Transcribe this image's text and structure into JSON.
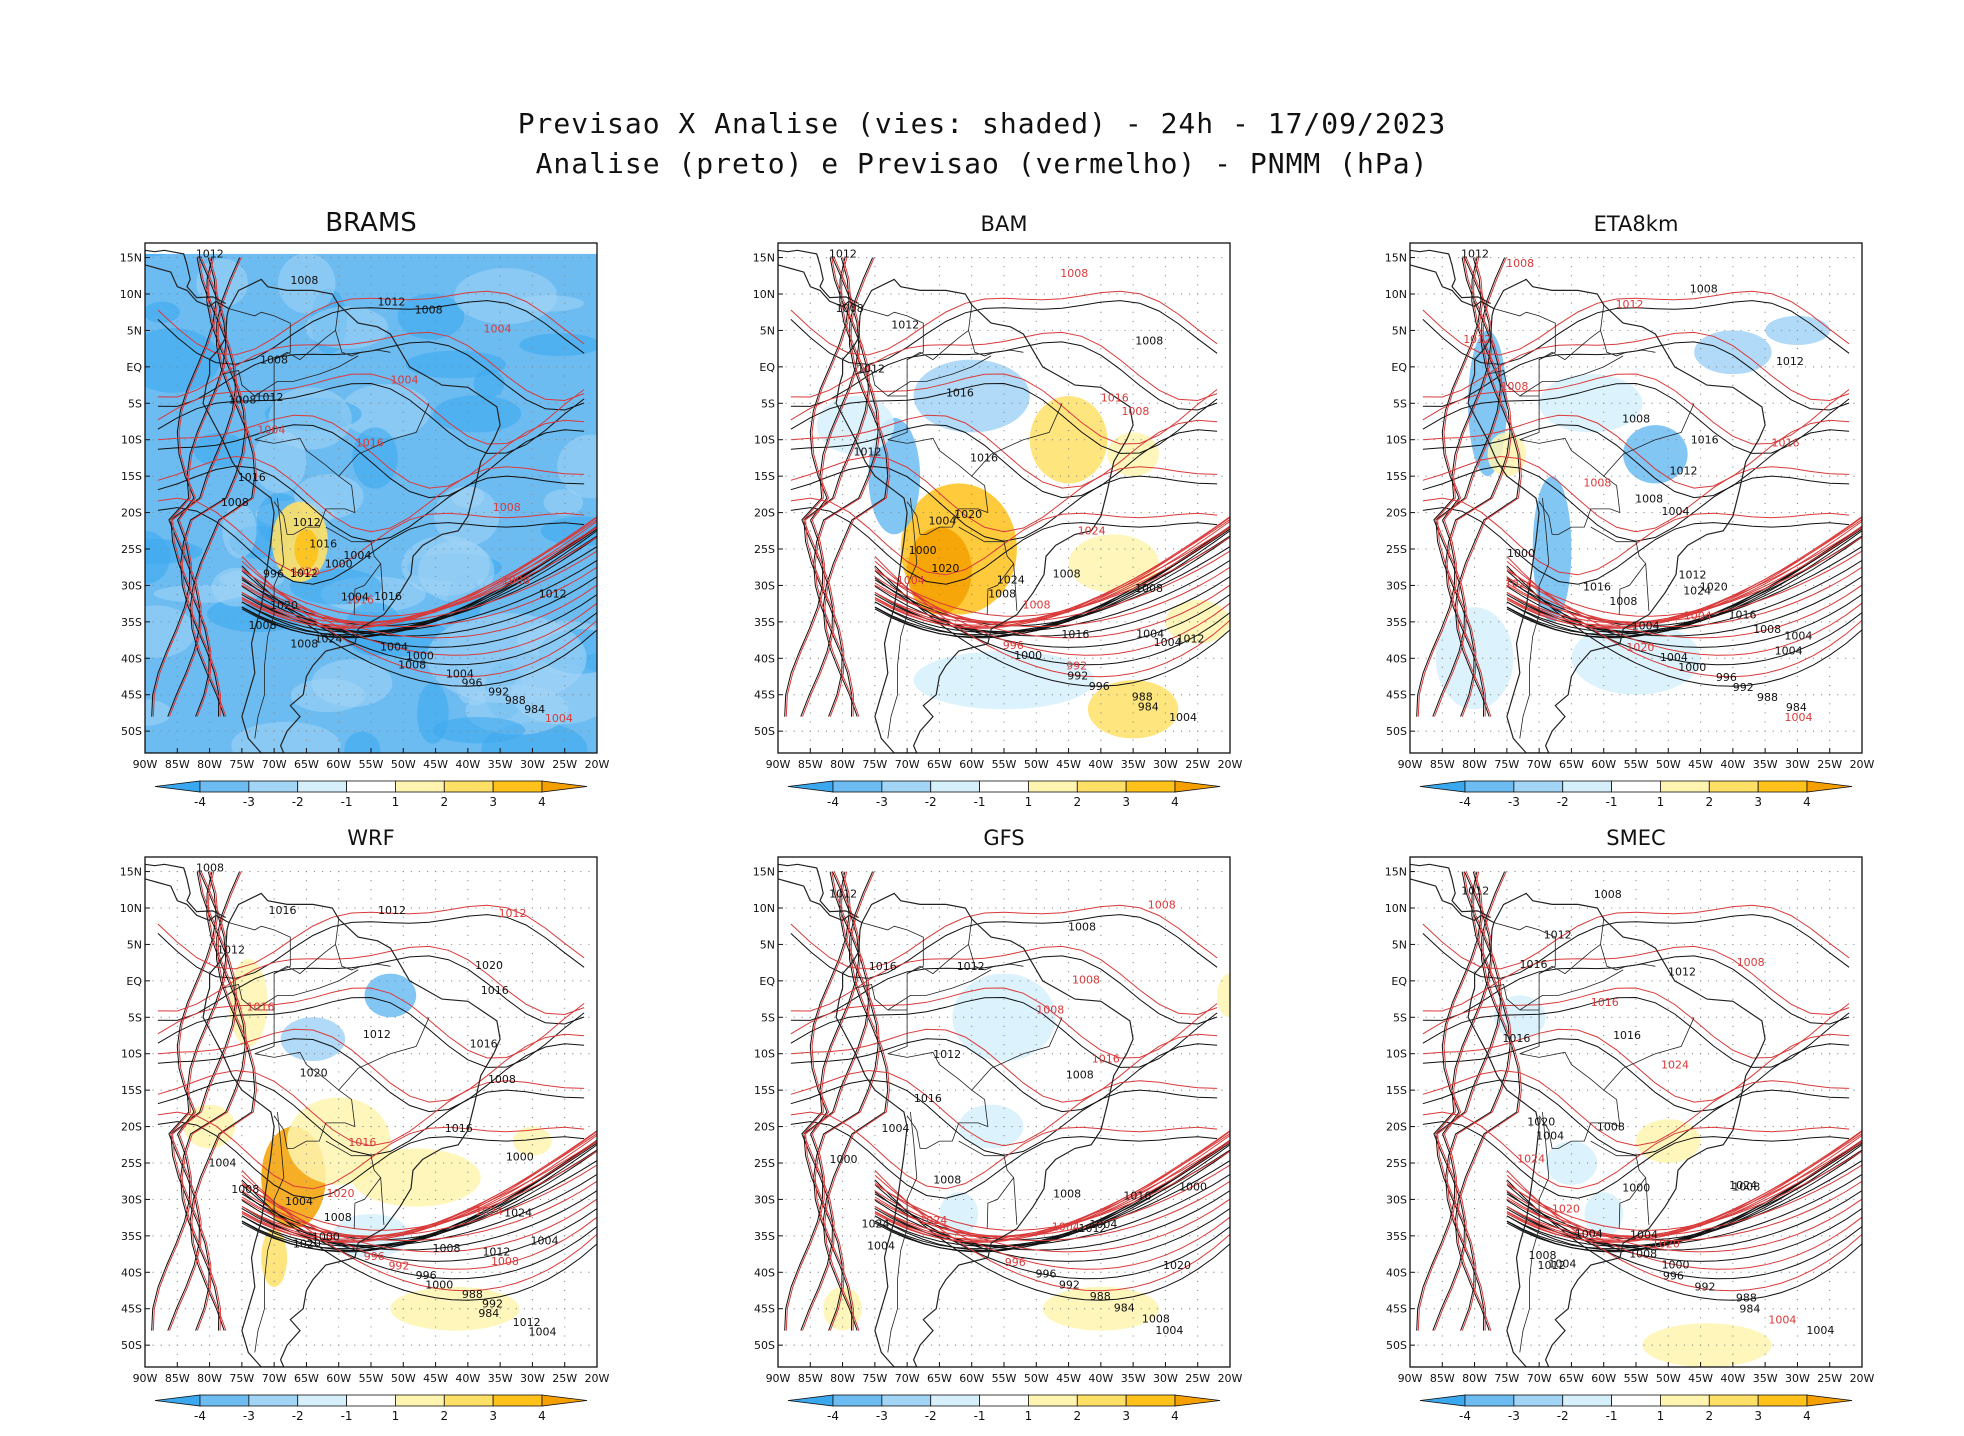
{
  "title": {
    "line1": "Previsao X Analise (vies: shaded) - 24h - 17/09/2023",
    "line2": "Analise (preto) e Previsao (vermelho) - PNMM (hPa)"
  },
  "axes": {
    "lat_ticks": [
      "15N",
      "10N",
      "5N",
      "EQ",
      "5S",
      "10S",
      "15S",
      "20S",
      "25S",
      "30S",
      "35S",
      "40S",
      "45S",
      "50S"
    ],
    "lon_ticks": [
      "90W",
      "85W",
      "80W",
      "75W",
      "70W",
      "65W",
      "60W",
      "55W",
      "50W",
      "45W",
      "40W",
      "35W",
      "30W",
      "25W",
      "20W"
    ]
  },
  "colorbar": {
    "labels": [
      "-4",
      "-3",
      "-2",
      "-1",
      "1",
      "2",
      "3",
      "4"
    ],
    "colors": [
      "#3aa8ee",
      "#6cbcf2",
      "#a2d4f6",
      "#d6f0fb",
      "#ffffff",
      "#fff5b0",
      "#ffe066",
      "#ffc21a",
      "#f5a000"
    ]
  },
  "colors": {
    "analysis": "#111111",
    "forecast": "#d93a3a",
    "coast": "#222222",
    "grid": "#888888"
  },
  "panels": [
    {
      "name": "BRAMS",
      "labels": [
        {
          "t": "1012",
          "c": "k"
        },
        {
          "t": "1008",
          "c": "k"
        },
        {
          "t": "1008",
          "c": "k"
        },
        {
          "t": "1012",
          "c": "k"
        },
        {
          "t": "1004",
          "c": "r"
        },
        {
          "t": "1008",
          "c": "k"
        },
        {
          "t": "1004",
          "c": "r"
        },
        {
          "t": "1012",
          "c": "k"
        },
        {
          "t": "1008",
          "c": "k"
        },
        {
          "t": "1004",
          "c": "r"
        },
        {
          "t": "1016",
          "c": "r"
        },
        {
          "t": "1016",
          "c": "k"
        },
        {
          "t": "1008",
          "c": "k"
        },
        {
          "t": "1008",
          "c": "r"
        },
        {
          "t": "1016",
          "c": "k"
        },
        {
          "t": "1012",
          "c": "k"
        },
        {
          "t": "1004",
          "c": "k"
        },
        {
          "t": "1000",
          "c": "k"
        },
        {
          "t": "1016",
          "c": "r"
        },
        {
          "t": "1020",
          "c": "k"
        },
        {
          "t": "1012",
          "c": "k"
        },
        {
          "t": "996",
          "c": "k"
        },
        {
          "t": "1020",
          "c": "r"
        },
        {
          "t": "1024",
          "c": "k"
        },
        {
          "t": "1016",
          "c": "k"
        },
        {
          "t": "1004",
          "c": "k"
        },
        {
          "t": "1008",
          "c": "k"
        },
        {
          "t": "1008",
          "c": "r"
        },
        {
          "t": "1012",
          "c": "k"
        },
        {
          "t": "1008",
          "c": "k"
        },
        {
          "t": "1004",
          "c": "k"
        },
        {
          "t": "1000",
          "c": "k"
        },
        {
          "t": "1008",
          "c": "k"
        },
        {
          "t": "1004",
          "c": "k"
        },
        {
          "t": "996",
          "c": "k"
        },
        {
          "t": "992",
          "c": "k"
        },
        {
          "t": "988",
          "c": "k"
        },
        {
          "t": "984",
          "c": "k"
        },
        {
          "t": "1004",
          "c": "r"
        }
      ]
    },
    {
      "name": "BAM",
      "labels": [
        {
          "t": "1012",
          "c": "k"
        },
        {
          "t": "1008",
          "c": "r"
        },
        {
          "t": "1012",
          "c": "k"
        },
        {
          "t": "1008",
          "c": "k"
        },
        {
          "t": "1008",
          "c": "k"
        },
        {
          "t": "1012",
          "c": "k"
        },
        {
          "t": "1016",
          "c": "k"
        },
        {
          "t": "1016",
          "c": "r"
        },
        {
          "t": "1008",
          "c": "r"
        },
        {
          "t": "1012",
          "c": "k"
        },
        {
          "t": "1016",
          "c": "k"
        },
        {
          "t": "1020",
          "c": "k"
        },
        {
          "t": "1004",
          "c": "k"
        },
        {
          "t": "1024",
          "c": "r"
        },
        {
          "t": "1000",
          "c": "k"
        },
        {
          "t": "1024",
          "c": "k"
        },
        {
          "t": "1008",
          "c": "k"
        },
        {
          "t": "1020",
          "c": "k"
        },
        {
          "t": "1012",
          "c": "k"
        },
        {
          "t": "1004",
          "c": "k"
        },
        {
          "t": "1016",
          "c": "k"
        },
        {
          "t": "1008",
          "c": "r"
        },
        {
          "t": "1008",
          "c": "k"
        },
        {
          "t": "1008",
          "c": "k"
        },
        {
          "t": "1004",
          "c": "k"
        },
        {
          "t": "1004",
          "c": "r"
        },
        {
          "t": "996",
          "c": "r"
        },
        {
          "t": "1000",
          "c": "k"
        },
        {
          "t": "992",
          "c": "r"
        },
        {
          "t": "992",
          "c": "k"
        },
        {
          "t": "996",
          "c": "k"
        },
        {
          "t": "988",
          "c": "k"
        },
        {
          "t": "984",
          "c": "k"
        },
        {
          "t": "1004",
          "c": "k"
        }
      ]
    },
    {
      "name": "ETA8km",
      "labels": [
        {
          "t": "1012",
          "c": "k"
        },
        {
          "t": "1008",
          "c": "r"
        },
        {
          "t": "1008",
          "c": "k"
        },
        {
          "t": "1012",
          "c": "r"
        },
        {
          "t": "1012",
          "c": "r"
        },
        {
          "t": "1012",
          "c": "k"
        },
        {
          "t": "1008",
          "c": "r"
        },
        {
          "t": "1008",
          "c": "k"
        },
        {
          "t": "1016",
          "c": "k"
        },
        {
          "t": "1016",
          "c": "r"
        },
        {
          "t": "1008",
          "c": "r"
        },
        {
          "t": "1012",
          "c": "k"
        },
        {
          "t": "1008",
          "c": "k"
        },
        {
          "t": "1004",
          "c": "k"
        },
        {
          "t": "1000",
          "c": "k"
        },
        {
          "t": "1020",
          "c": "k"
        },
        {
          "t": "1016",
          "c": "k"
        },
        {
          "t": "1024",
          "c": "r"
        },
        {
          "t": "1024",
          "c": "k"
        },
        {
          "t": "1012",
          "c": "k"
        },
        {
          "t": "1016",
          "c": "k"
        },
        {
          "t": "1004",
          "c": "k"
        },
        {
          "t": "1004",
          "c": "r"
        },
        {
          "t": "1004",
          "c": "k"
        },
        {
          "t": "1008",
          "c": "k"
        },
        {
          "t": "1004",
          "c": "k"
        },
        {
          "t": "1008",
          "c": "k"
        },
        {
          "t": "1020",
          "c": "r"
        },
        {
          "t": "1004",
          "c": "k"
        },
        {
          "t": "1000",
          "c": "k"
        },
        {
          "t": "996",
          "c": "k"
        },
        {
          "t": "992",
          "c": "k"
        },
        {
          "t": "988",
          "c": "k"
        },
        {
          "t": "984",
          "c": "k"
        },
        {
          "t": "1004",
          "c": "r"
        }
      ]
    },
    {
      "name": "WRF",
      "labels": [
        {
          "t": "1008",
          "c": "k"
        },
        {
          "t": "1012",
          "c": "k"
        },
        {
          "t": "1016",
          "c": "k"
        },
        {
          "t": "1012",
          "c": "r"
        },
        {
          "t": "1012",
          "c": "k"
        },
        {
          "t": "1020",
          "c": "k"
        },
        {
          "t": "1016",
          "c": "k"
        },
        {
          "t": "1016",
          "c": "r"
        },
        {
          "t": "1012",
          "c": "k"
        },
        {
          "t": "1016",
          "c": "k"
        },
        {
          "t": "1020",
          "c": "k"
        },
        {
          "t": "1008",
          "c": "k"
        },
        {
          "t": "1016",
          "c": "k"
        },
        {
          "t": "1016",
          "c": "r"
        },
        {
          "t": "1004",
          "c": "k"
        },
        {
          "t": "1000",
          "c": "k"
        },
        {
          "t": "1024",
          "c": "r"
        },
        {
          "t": "1024",
          "c": "k"
        },
        {
          "t": "1020",
          "c": "k"
        },
        {
          "t": "1008",
          "c": "k"
        },
        {
          "t": "1004",
          "c": "k"
        },
        {
          "t": "1020",
          "c": "r"
        },
        {
          "t": "1012",
          "c": "k"
        },
        {
          "t": "1008",
          "c": "k"
        },
        {
          "t": "1008",
          "c": "r"
        },
        {
          "t": "1008",
          "c": "k"
        },
        {
          "t": "1004",
          "c": "k"
        },
        {
          "t": "1000",
          "c": "k"
        },
        {
          "t": "996",
          "c": "r"
        },
        {
          "t": "992",
          "c": "r"
        },
        {
          "t": "996",
          "c": "k"
        },
        {
          "t": "1000",
          "c": "k"
        },
        {
          "t": "988",
          "c": "k"
        },
        {
          "t": "992",
          "c": "k"
        },
        {
          "t": "984",
          "c": "k"
        },
        {
          "t": "1012",
          "c": "k"
        },
        {
          "t": "1004",
          "c": "k"
        }
      ]
    },
    {
      "name": "GFS",
      "labels": [
        {
          "t": "1012",
          "c": "k"
        },
        {
          "t": "1008",
          "c": "r"
        },
        {
          "t": "1008",
          "c": "k"
        },
        {
          "t": "1012",
          "c": "k"
        },
        {
          "t": "1016",
          "c": "k"
        },
        {
          "t": "1008",
          "c": "r"
        },
        {
          "t": "1008",
          "c": "r"
        },
        {
          "t": "1016",
          "c": "r"
        },
        {
          "t": "1012",
          "c": "k"
        },
        {
          "t": "1008",
          "c": "k"
        },
        {
          "t": "1016",
          "c": "k"
        },
        {
          "t": "1004",
          "c": "k"
        },
        {
          "t": "1000",
          "c": "k"
        },
        {
          "t": "1008",
          "c": "k"
        },
        {
          "t": "1020",
          "c": "k"
        },
        {
          "t": "1024",
          "c": "r"
        },
        {
          "t": "1024",
          "c": "k"
        },
        {
          "t": "1012",
          "c": "k"
        },
        {
          "t": "1016",
          "c": "k"
        },
        {
          "t": "1004",
          "c": "k"
        },
        {
          "t": "1008",
          "c": "k"
        },
        {
          "t": "1004",
          "c": "k"
        },
        {
          "t": "1000",
          "c": "k"
        },
        {
          "t": "1004",
          "c": "r"
        },
        {
          "t": "996",
          "c": "r"
        },
        {
          "t": "996",
          "c": "k"
        },
        {
          "t": "992",
          "c": "k"
        },
        {
          "t": "988",
          "c": "k"
        },
        {
          "t": "984",
          "c": "k"
        },
        {
          "t": "1008",
          "c": "k"
        },
        {
          "t": "1004",
          "c": "k"
        }
      ]
    },
    {
      "name": "SMEC",
      "labels": [
        {
          "t": "1012",
          "c": "k"
        },
        {
          "t": "1008",
          "c": "k"
        },
        {
          "t": "1012",
          "c": "k"
        },
        {
          "t": "1008",
          "c": "r"
        },
        {
          "t": "1016",
          "c": "k"
        },
        {
          "t": "1012",
          "c": "k"
        },
        {
          "t": "1016",
          "c": "r"
        },
        {
          "t": "1016",
          "c": "k"
        },
        {
          "t": "1016",
          "c": "k"
        },
        {
          "t": "1024",
          "c": "r"
        },
        {
          "t": "1020",
          "c": "k"
        },
        {
          "t": "1008",
          "c": "k"
        },
        {
          "t": "1004",
          "c": "k"
        },
        {
          "t": "1024",
          "c": "r"
        },
        {
          "t": "1024",
          "c": "k"
        },
        {
          "t": "1000",
          "c": "k"
        },
        {
          "t": "1012",
          "c": "k"
        },
        {
          "t": "1020",
          "c": "r"
        },
        {
          "t": "1004",
          "c": "k"
        },
        {
          "t": "1008",
          "c": "k"
        },
        {
          "t": "1004",
          "c": "k"
        },
        {
          "t": "1008",
          "c": "k"
        },
        {
          "t": "1020",
          "c": "r"
        },
        {
          "t": "1004",
          "c": "k"
        },
        {
          "t": "1008",
          "c": "k"
        },
        {
          "t": "1000",
          "c": "k"
        },
        {
          "t": "996",
          "c": "k"
        },
        {
          "t": "992",
          "c": "k"
        },
        {
          "t": "988",
          "c": "k"
        },
        {
          "t": "984",
          "c": "k"
        },
        {
          "t": "1004",
          "c": "r"
        },
        {
          "t": "1004",
          "c": "k"
        }
      ]
    }
  ]
}
